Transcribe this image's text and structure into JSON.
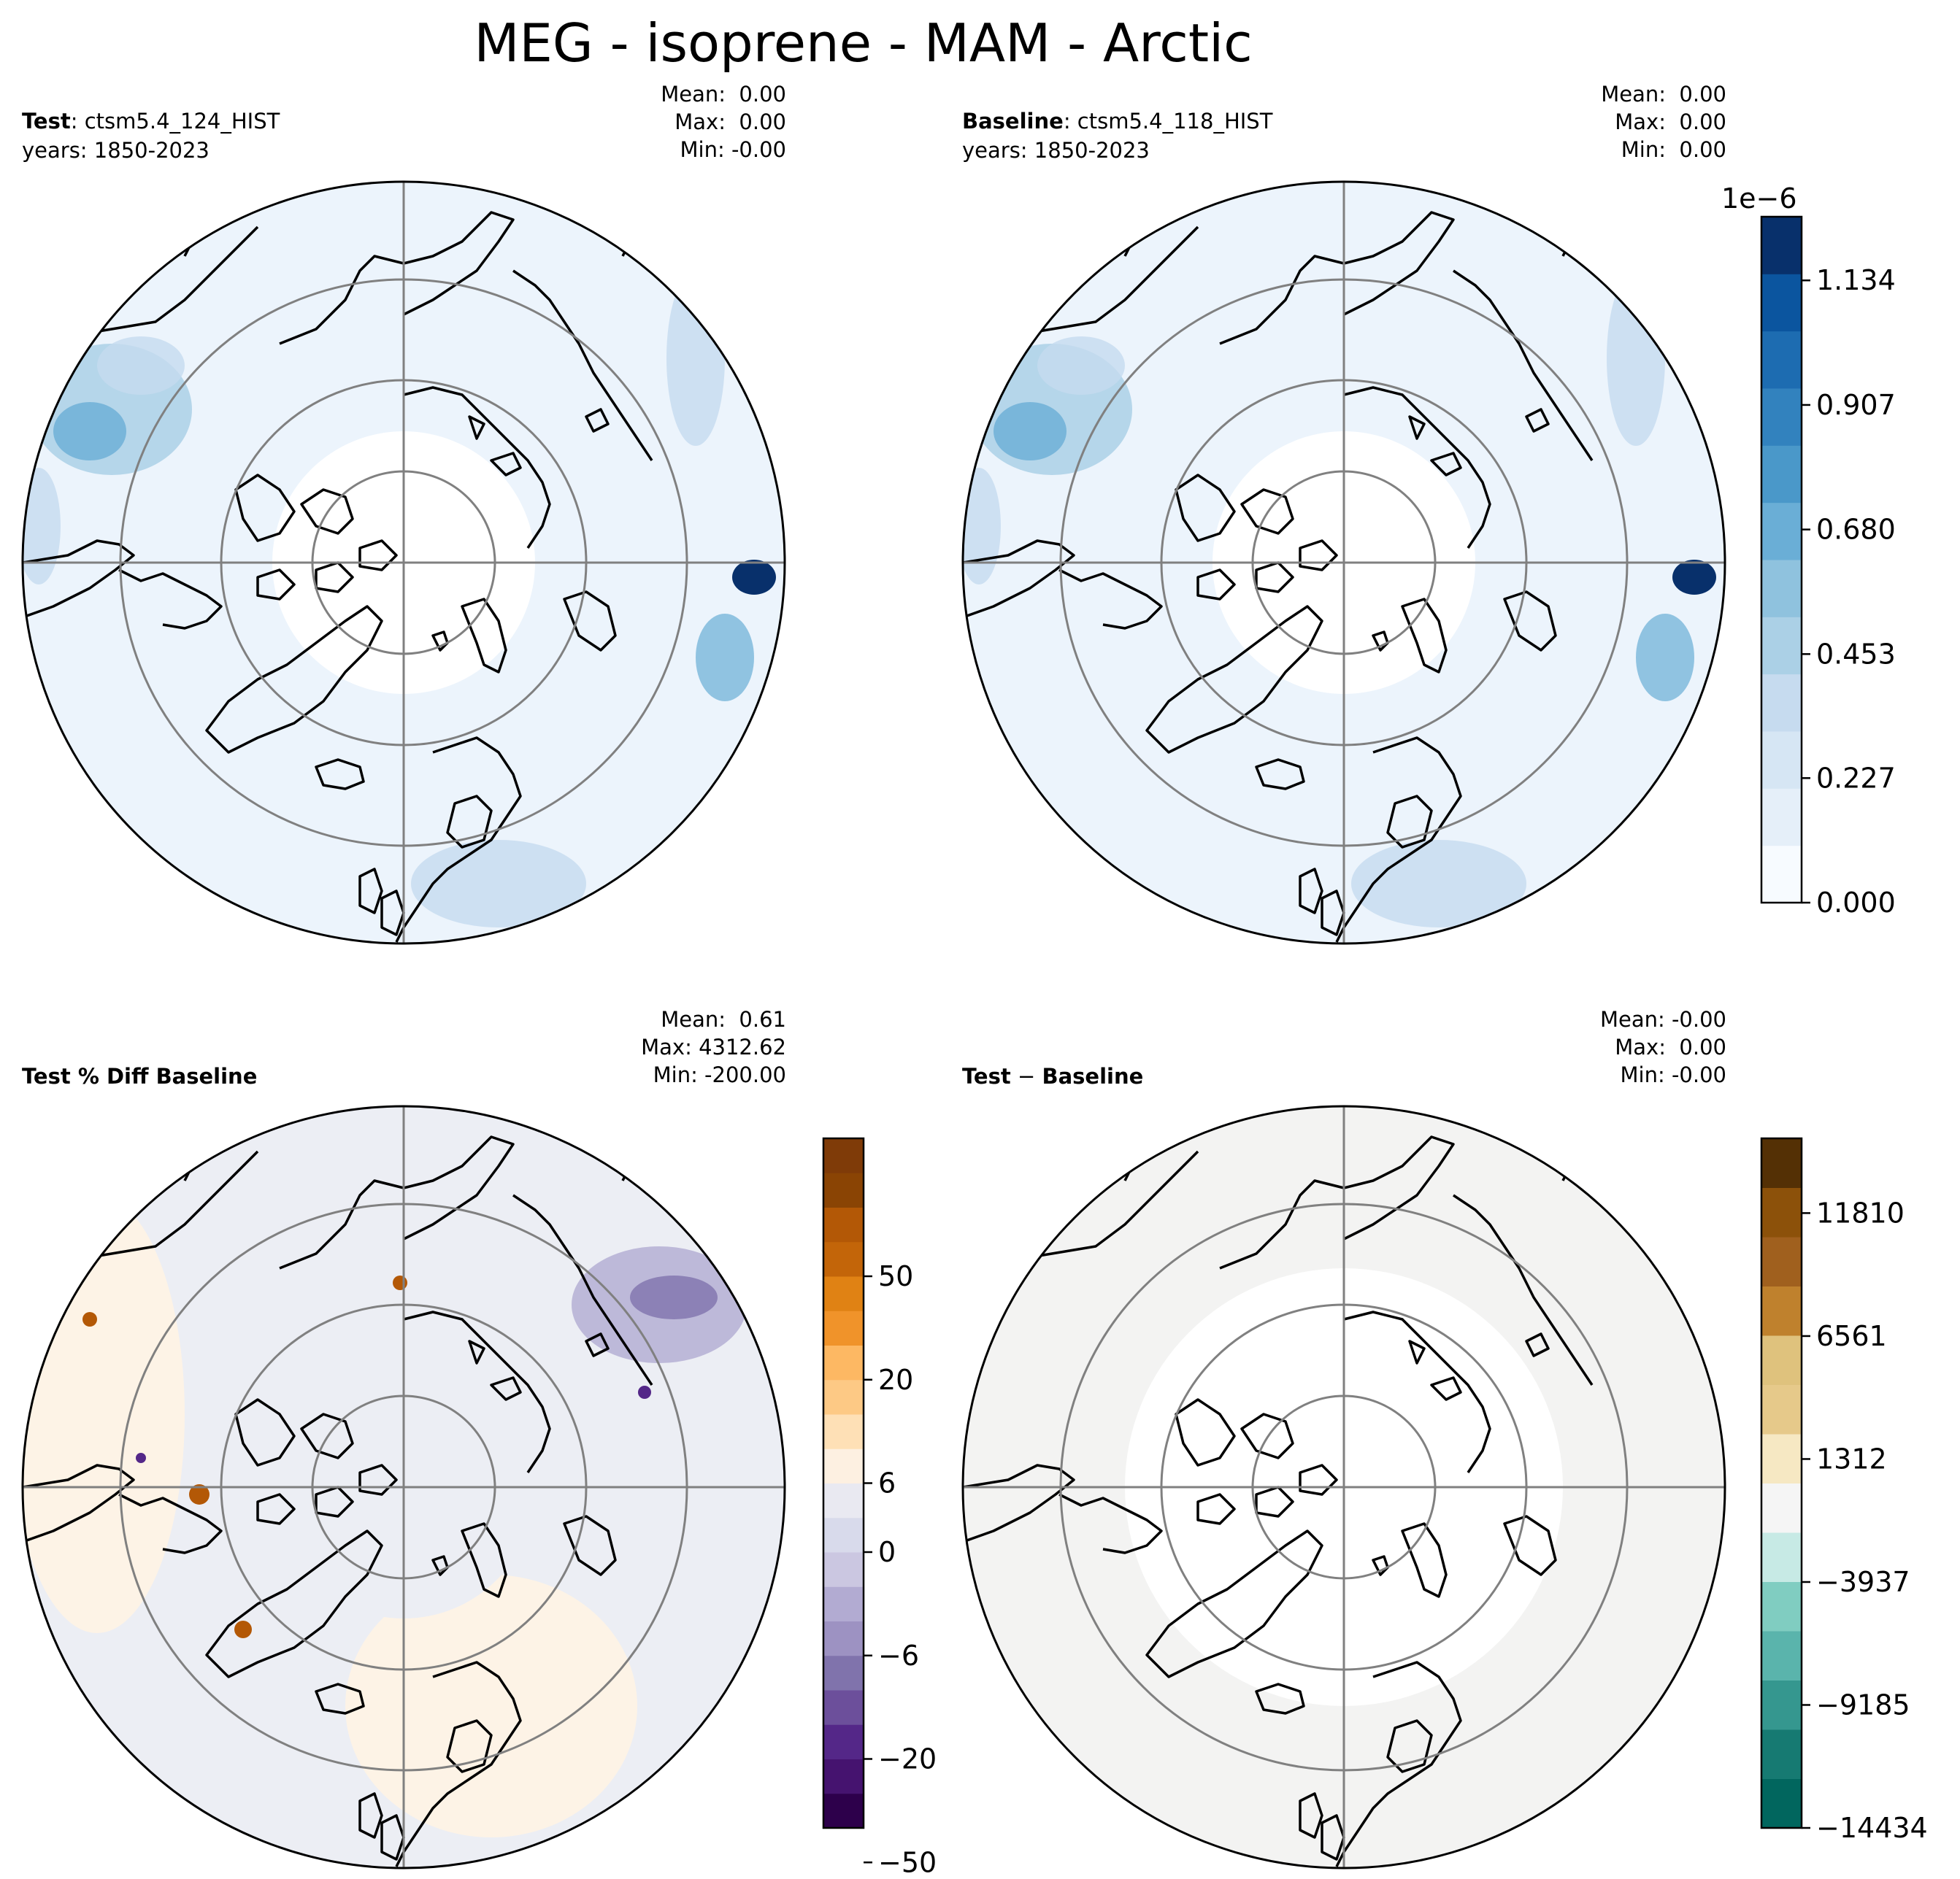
{
  "figure": {
    "title": "MEG - isoprene - MAM - Arctic"
  },
  "panels": [
    {
      "id": "test",
      "label_bold": "Test",
      "label_text": ": ctsm5.4_124_HIST",
      "years": "years: 1850-2023",
      "stats": {
        "mean": "Mean:  0.00",
        "max": "Max:  0.00",
        "min": "Min: -0.00"
      },
      "fill_color": "#ecf4fc"
    },
    {
      "id": "baseline",
      "label_bold": "Baseline",
      "label_text": ": ctsm5.4_118_HIST",
      "years": "years: 1850-2023",
      "stats": {
        "mean": "Mean:  0.00",
        "max": "Max:  0.00",
        "min": "Min:  0.00"
      },
      "fill_color": "#ecf4fc"
    },
    {
      "id": "pct-diff",
      "label_bold": "Test % Diff Baseline",
      "stats": {
        "mean": "Mean:  0.61",
        "max": "Max: 4312.62",
        "min": "Min: -200.00"
      },
      "fill_color": "#eceef4"
    },
    {
      "id": "diff",
      "label_bold": "Test",
      "label_minus": " − ",
      "label_bold2": "Baseline",
      "stats": {
        "mean": "Mean: -0.00",
        "max": "Max:  0.00",
        "min": "Min: -0.00"
      },
      "fill_color": "#f3f3f2"
    }
  ],
  "chart_data": [
    {
      "type": "heatmap",
      "name": "Test / Baseline shared colorbar",
      "exponent_label": "1e−6",
      "range": [
        0.0,
        1.25
      ],
      "tick_labels": [
        "0.000",
        "0.227",
        "0.453",
        "0.680",
        "0.907",
        "1.134"
      ],
      "ticks": [
        0.0,
        0.227,
        0.453,
        0.68,
        0.907,
        1.134
      ],
      "colors": [
        "#f7fbff",
        "#e5eff9",
        "#d6e6f4",
        "#c6dbef",
        "#abd0e6",
        "#8fc2de",
        "#6aaed6",
        "#4a98c9",
        "#3282be",
        "#1d6cb1",
        "#0b559f",
        "#08306b"
      ]
    },
    {
      "type": "heatmap",
      "name": "Test % Diff Baseline colorbar",
      "range_index": [
        0,
        18
      ],
      "tick_labels": [
        "50",
        "20",
        "6",
        "0",
        "−6",
        "−20",
        "−50"
      ],
      "tick_levels": [
        15,
        12,
        9,
        7,
        4,
        1,
        -2
      ],
      "colors": [
        "#2d004b",
        "#45136f",
        "#542788",
        "#6c4f9b",
        "#8073ac",
        "#9d92c2",
        "#b2abd2",
        "#cbc7e1",
        "#d8daeb",
        "#e9e9f1",
        "#fdf0e1",
        "#fee0b6",
        "#fdc985",
        "#fdb863",
        "#f0932a",
        "#e08214",
        "#c36509",
        "#b35806",
        "#8a4404",
        "#7f3b08"
      ]
    },
    {
      "type": "heatmap",
      "name": "Test − Baseline colorbar",
      "range": [
        -14434,
        15000
      ],
      "tick_labels": [
        "11810",
        "6561",
        "1312",
        "−3937",
        "−9185",
        "−14434"
      ],
      "ticks": [
        11810,
        6561,
        1312,
        -3937,
        -9185,
        -14434
      ],
      "colors": [
        "#01665e",
        "#167a72",
        "#35978f",
        "#5ab4ac",
        "#80cdc1",
        "#c7eae5",
        "#f5f5f5",
        "#f6e8c3",
        "#e6c98a",
        "#dfc27d",
        "#bf812d",
        "#a0601e",
        "#8c510a",
        "#543005"
      ]
    }
  ]
}
